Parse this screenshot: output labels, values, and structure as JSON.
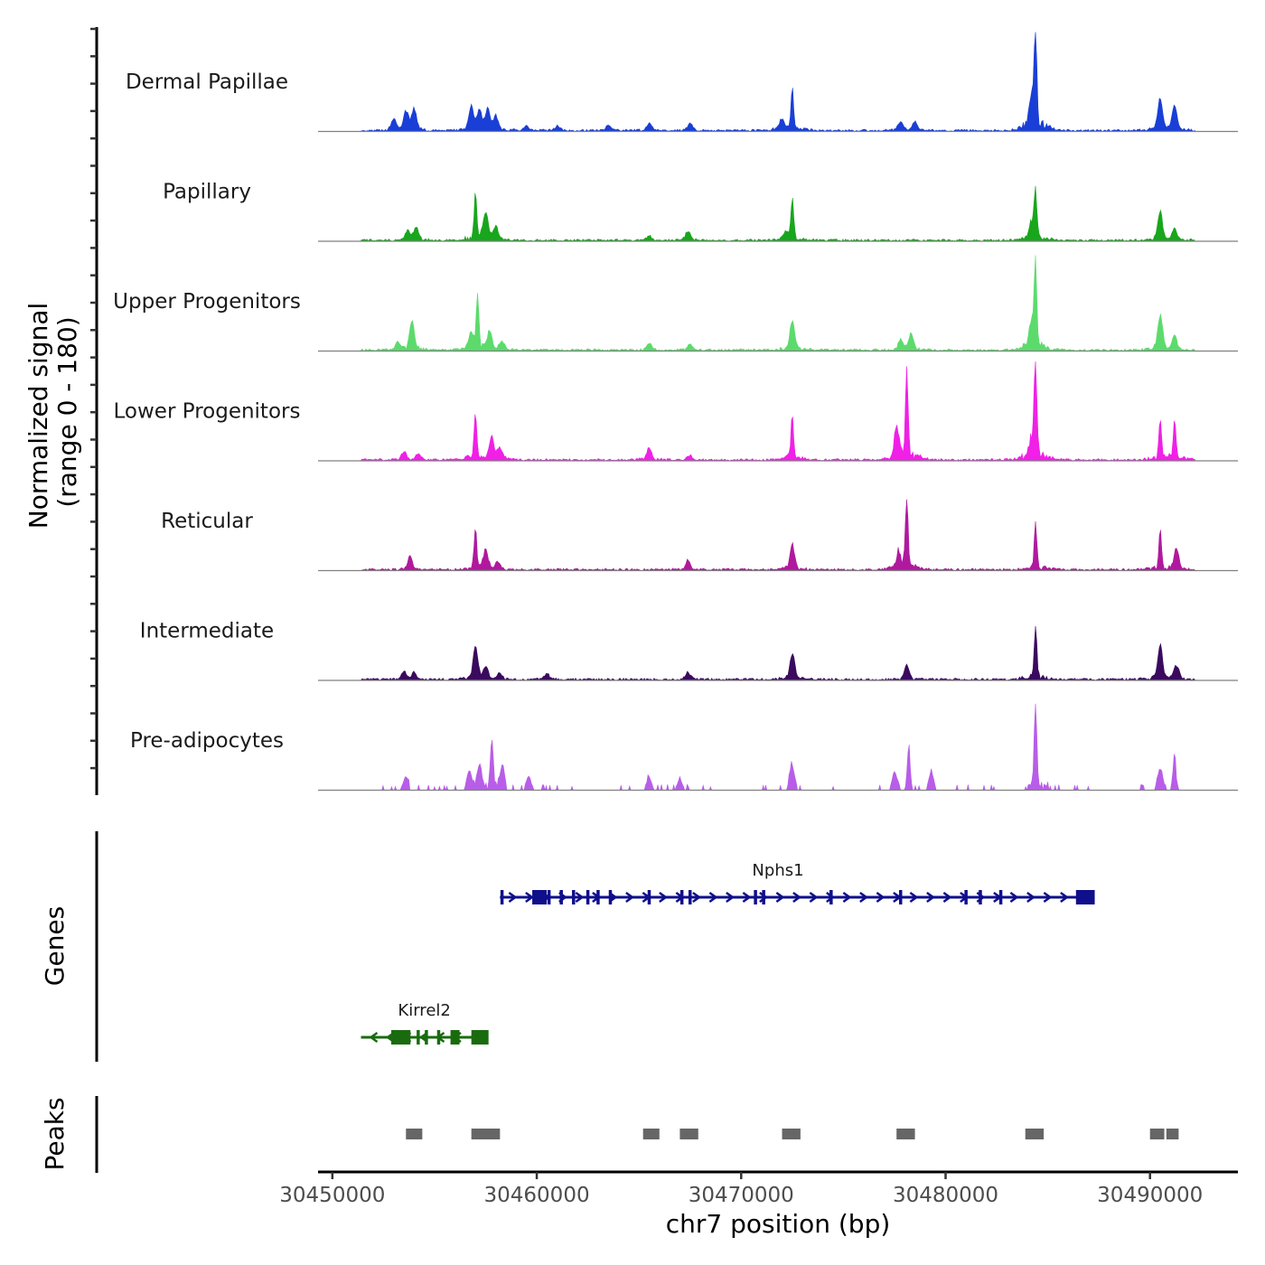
{
  "chart_data": {
    "type": "genome-coverage",
    "chromosome": "chr7",
    "x_range": [
      30449300,
      30494300
    ],
    "x_ticks": [
      30450000,
      30460000,
      30470000,
      30480000,
      30490000
    ],
    "x_tick_labels": [
      "30450000",
      "30460000",
      "30470000",
      "30480000",
      "30490000"
    ],
    "xlabel": "chr7 position (bp)",
    "ylabel_line1": "Normalized signal",
    "ylabel_line2": "(range 0 - 180)",
    "y_range": [
      0,
      180
    ],
    "tracks": [
      {
        "name": "Dermal Papillae",
        "color": "#1a3fd6",
        "peaks": [
          {
            "pos": 30453000,
            "h": 20
          },
          {
            "pos": 30453600,
            "h": 32
          },
          {
            "pos": 30454000,
            "h": 38
          },
          {
            "pos": 30456800,
            "h": 40
          },
          {
            "pos": 30457200,
            "h": 32
          },
          {
            "pos": 30457600,
            "h": 36
          },
          {
            "pos": 30458000,
            "h": 25
          },
          {
            "pos": 30459500,
            "h": 8
          },
          {
            "pos": 30461000,
            "h": 8
          },
          {
            "pos": 30463500,
            "h": 10
          },
          {
            "pos": 30465500,
            "h": 14
          },
          {
            "pos": 30467500,
            "h": 12
          },
          {
            "pos": 30472000,
            "h": 20
          },
          {
            "pos": 30472500,
            "h": 72
          },
          {
            "pos": 30477800,
            "h": 16
          },
          {
            "pos": 30478500,
            "h": 14
          },
          {
            "pos": 30484200,
            "h": 60
          },
          {
            "pos": 30484400,
            "h": 180
          },
          {
            "pos": 30490500,
            "h": 55
          },
          {
            "pos": 30491200,
            "h": 42
          }
        ]
      },
      {
        "name": "Papillary",
        "color": "#18a61c",
        "peaks": [
          {
            "pos": 30453700,
            "h": 16
          },
          {
            "pos": 30454100,
            "h": 22
          },
          {
            "pos": 30457000,
            "h": 78
          },
          {
            "pos": 30457500,
            "h": 44
          },
          {
            "pos": 30458000,
            "h": 22
          },
          {
            "pos": 30465500,
            "h": 8
          },
          {
            "pos": 30467400,
            "h": 16
          },
          {
            "pos": 30472200,
            "h": 10
          },
          {
            "pos": 30472500,
            "h": 72
          },
          {
            "pos": 30484200,
            "h": 28
          },
          {
            "pos": 30484400,
            "h": 88
          },
          {
            "pos": 30490500,
            "h": 48
          },
          {
            "pos": 30491200,
            "h": 20
          }
        ]
      },
      {
        "name": "Upper Progenitors",
        "color": "#5cdb6c",
        "peaks": [
          {
            "pos": 30453200,
            "h": 14
          },
          {
            "pos": 30453900,
            "h": 50
          },
          {
            "pos": 30456800,
            "h": 24
          },
          {
            "pos": 30457100,
            "h": 95
          },
          {
            "pos": 30457700,
            "h": 30
          },
          {
            "pos": 30458300,
            "h": 14
          },
          {
            "pos": 30465500,
            "h": 12
          },
          {
            "pos": 30467500,
            "h": 10
          },
          {
            "pos": 30472500,
            "h": 50
          },
          {
            "pos": 30477800,
            "h": 18
          },
          {
            "pos": 30478300,
            "h": 28
          },
          {
            "pos": 30484200,
            "h": 40
          },
          {
            "pos": 30484400,
            "h": 145
          },
          {
            "pos": 30490500,
            "h": 60
          },
          {
            "pos": 30491200,
            "h": 24
          }
        ]
      },
      {
        "name": "Lower Progenitors",
        "color": "#f020e6",
        "peaks": [
          {
            "pos": 30453500,
            "h": 14
          },
          {
            "pos": 30454200,
            "h": 10
          },
          {
            "pos": 30457000,
            "h": 85
          },
          {
            "pos": 30457800,
            "h": 38
          },
          {
            "pos": 30458200,
            "h": 20
          },
          {
            "pos": 30465500,
            "h": 20
          },
          {
            "pos": 30467500,
            "h": 8
          },
          {
            "pos": 30472500,
            "h": 80
          },
          {
            "pos": 30477600,
            "h": 50
          },
          {
            "pos": 30478100,
            "h": 155
          },
          {
            "pos": 30484200,
            "h": 30
          },
          {
            "pos": 30484400,
            "h": 170
          },
          {
            "pos": 30490500,
            "h": 70
          },
          {
            "pos": 30491200,
            "h": 70
          }
        ]
      },
      {
        "name": "Reticular",
        "color": "#b0199e",
        "peaks": [
          {
            "pos": 30453800,
            "h": 22
          },
          {
            "pos": 30457000,
            "h": 70
          },
          {
            "pos": 30457500,
            "h": 32
          },
          {
            "pos": 30458100,
            "h": 12
          },
          {
            "pos": 30467400,
            "h": 16
          },
          {
            "pos": 30472500,
            "h": 44
          },
          {
            "pos": 30477700,
            "h": 28
          },
          {
            "pos": 30478100,
            "h": 120
          },
          {
            "pos": 30484400,
            "h": 80
          },
          {
            "pos": 30490500,
            "h": 70
          },
          {
            "pos": 30491300,
            "h": 36
          }
        ]
      },
      {
        "name": "Intermediate",
        "color": "#3a0a5e",
        "peaks": [
          {
            "pos": 30453500,
            "h": 14
          },
          {
            "pos": 30454000,
            "h": 12
          },
          {
            "pos": 30457000,
            "h": 55
          },
          {
            "pos": 30457500,
            "h": 20
          },
          {
            "pos": 30458200,
            "h": 12
          },
          {
            "pos": 30460500,
            "h": 10
          },
          {
            "pos": 30467400,
            "h": 12
          },
          {
            "pos": 30472500,
            "h": 45
          },
          {
            "pos": 30478100,
            "h": 24
          },
          {
            "pos": 30484400,
            "h": 92
          },
          {
            "pos": 30490500,
            "h": 60
          },
          {
            "pos": 30491300,
            "h": 24
          }
        ]
      },
      {
        "name": "Pre-adipocytes",
        "color": "#b85de8",
        "peaks": [
          {
            "pos": 30453600,
            "h": 24
          },
          {
            "pos": 30456700,
            "h": 34
          },
          {
            "pos": 30457200,
            "h": 40
          },
          {
            "pos": 30457800,
            "h": 92
          },
          {
            "pos": 30458300,
            "h": 38
          },
          {
            "pos": 30459600,
            "h": 24
          },
          {
            "pos": 30465500,
            "h": 22
          },
          {
            "pos": 30467000,
            "h": 18
          },
          {
            "pos": 30472500,
            "h": 42
          },
          {
            "pos": 30477500,
            "h": 30
          },
          {
            "pos": 30478200,
            "h": 80
          },
          {
            "pos": 30479300,
            "h": 30
          },
          {
            "pos": 30484400,
            "h": 150
          },
          {
            "pos": 30490500,
            "h": 36
          },
          {
            "pos": 30491200,
            "h": 66
          }
        ]
      }
    ],
    "genes_label": "Genes",
    "genes": [
      {
        "name": "Nphs1",
        "strand": "+",
        "start": 30458200,
        "end": 30487000,
        "color": "#0f0f8c",
        "exons": [
          30458300,
          30460000,
          30460600,
          30461200,
          30461800,
          30462500,
          30463000,
          30463600,
          30465500,
          30467100,
          30467500,
          30470700,
          30471100,
          30474400,
          30477800,
          30481000,
          30481700,
          30482700,
          30486600,
          30486900
        ]
      },
      {
        "name": "Kirrel2",
        "strand": "-",
        "start": 30451400,
        "end": 30457300,
        "color": "#1a6b10",
        "exons": [
          30453100,
          30453600,
          30454200,
          30454600,
          30455200,
          30456000,
          30457100
        ]
      }
    ],
    "peaks_label": "Peaks",
    "peak_regions": [
      [
        30453600,
        30454400
      ],
      [
        30456800,
        30458200
      ],
      [
        30465200,
        30466000
      ],
      [
        30467000,
        30467900
      ],
      [
        30472000,
        30472900
      ],
      [
        30477600,
        30478500
      ],
      [
        30483900,
        30484800
      ],
      [
        30490000,
        30490700
      ],
      [
        30490800,
        30491400
      ]
    ]
  }
}
